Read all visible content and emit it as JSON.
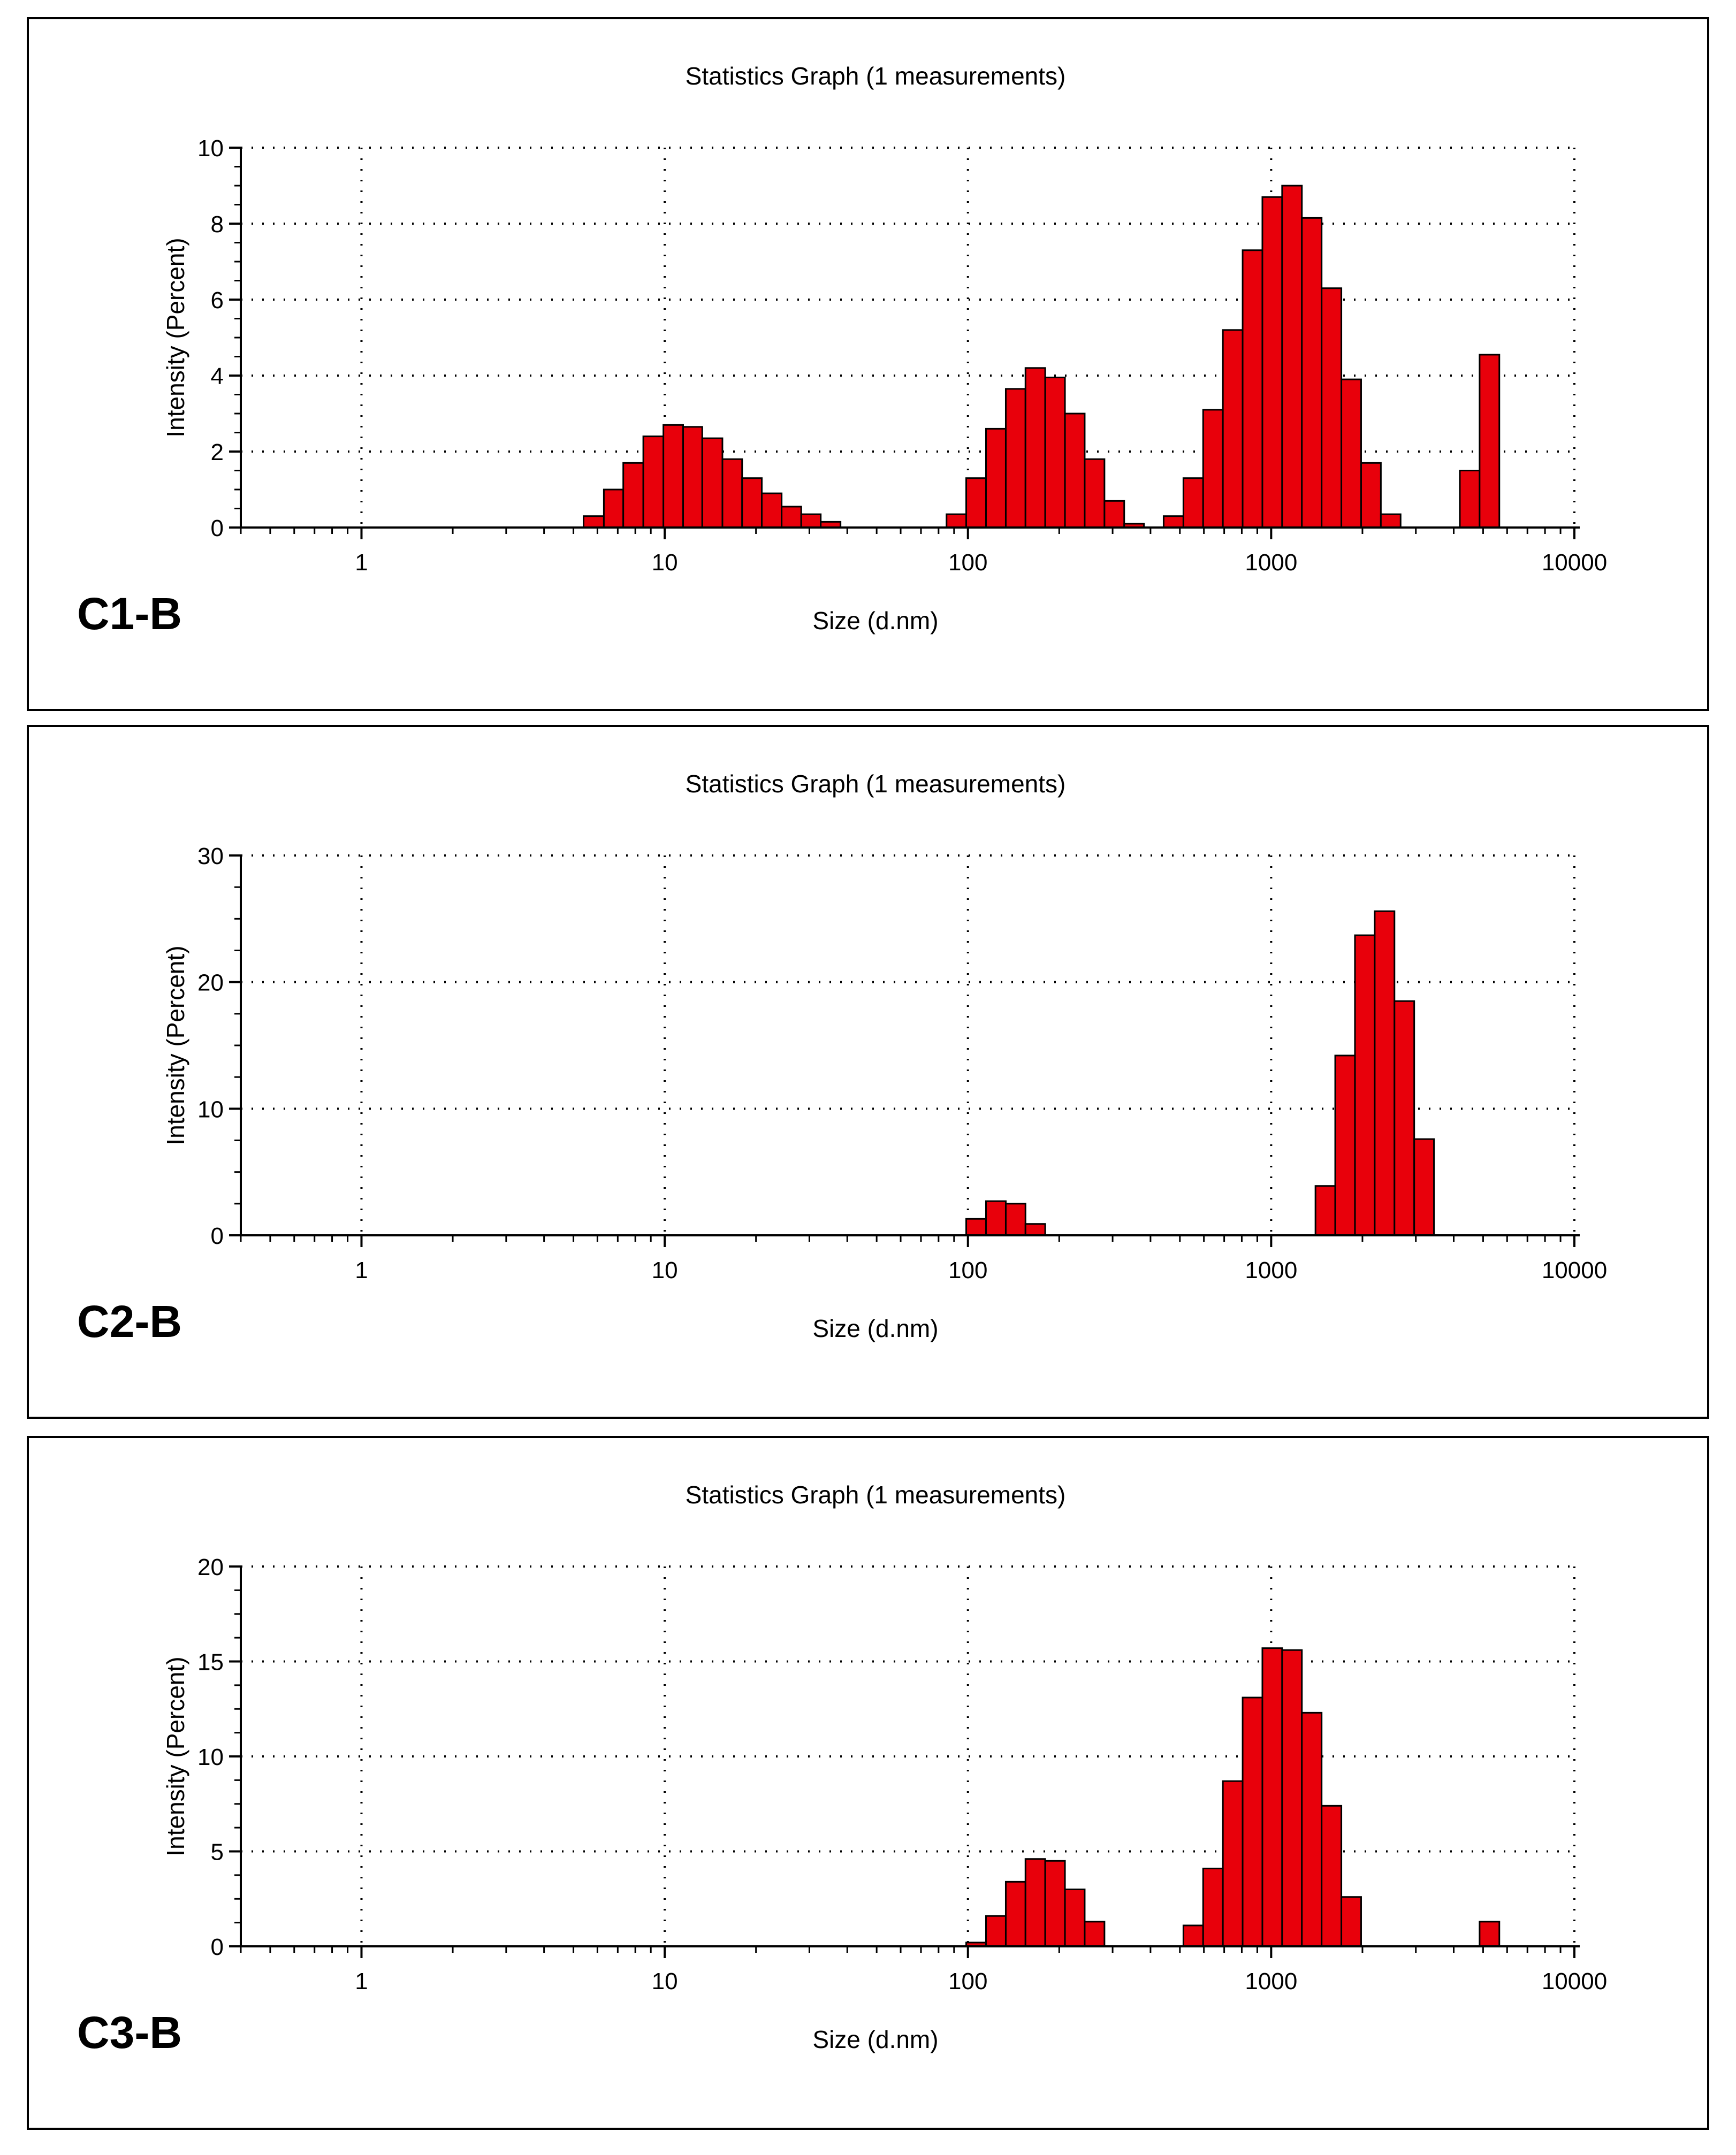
{
  "chart_data": [
    {
      "type": "bar",
      "panel_label": "C1-B",
      "title": "Statistics Graph (1 measurements)",
      "xlabel": "Size (d.nm)",
      "ylabel": "Intensity (Percent)",
      "xscale": "log",
      "xlim": [
        0.4,
        10000
      ],
      "xticks": [
        1,
        10,
        100,
        1000,
        10000
      ],
      "xtick_labels": [
        "1",
        "10",
        "100",
        "1000",
        "10000"
      ],
      "ylim": [
        0,
        10
      ],
      "yticks": [
        0,
        2,
        4,
        6,
        8,
        10
      ],
      "grid": true,
      "bar_color": "#e8000b",
      "bins": [
        {
          "x0": 5.4,
          "x1": 6.3,
          "value": 0.3
        },
        {
          "x0": 6.3,
          "x1": 7.3,
          "value": 1.0
        },
        {
          "x0": 7.3,
          "x1": 8.5,
          "value": 1.7
        },
        {
          "x0": 8.5,
          "x1": 9.9,
          "value": 2.4
        },
        {
          "x0": 9.9,
          "x1": 11.5,
          "value": 2.7
        },
        {
          "x0": 11.5,
          "x1": 13.3,
          "value": 2.65
        },
        {
          "x0": 13.3,
          "x1": 15.5,
          "value": 2.35
        },
        {
          "x0": 15.5,
          "x1": 18.0,
          "value": 1.8
        },
        {
          "x0": 18.0,
          "x1": 20.9,
          "value": 1.3
        },
        {
          "x0": 20.9,
          "x1": 24.3,
          "value": 0.9
        },
        {
          "x0": 24.3,
          "x1": 28.2,
          "value": 0.55
        },
        {
          "x0": 28.2,
          "x1": 32.7,
          "value": 0.35
        },
        {
          "x0": 32.7,
          "x1": 38.0,
          "value": 0.15
        },
        {
          "x0": 85.0,
          "x1": 98.7,
          "value": 0.35
        },
        {
          "x0": 98.7,
          "x1": 114.7,
          "value": 1.3
        },
        {
          "x0": 114.7,
          "x1": 133.3,
          "value": 2.6
        },
        {
          "x0": 133.3,
          "x1": 154.8,
          "value": 3.65
        },
        {
          "x0": 154.8,
          "x1": 179.8,
          "value": 4.2
        },
        {
          "x0": 179.8,
          "x1": 208.9,
          "value": 3.95
        },
        {
          "x0": 208.9,
          "x1": 242.7,
          "value": 3.0
        },
        {
          "x0": 242.7,
          "x1": 282.0,
          "value": 1.8
        },
        {
          "x0": 282.0,
          "x1": 327.6,
          "value": 0.7
        },
        {
          "x0": 327.6,
          "x1": 380.6,
          "value": 0.1
        },
        {
          "x0": 442.0,
          "x1": 513.6,
          "value": 0.3
        },
        {
          "x0": 513.6,
          "x1": 596.6,
          "value": 1.3
        },
        {
          "x0": 596.6,
          "x1": 693.1,
          "value": 3.1
        },
        {
          "x0": 693.1,
          "x1": 805.2,
          "value": 5.2
        },
        {
          "x0": 805.2,
          "x1": 935.5,
          "value": 7.3
        },
        {
          "x0": 935.5,
          "x1": 1086.8,
          "value": 8.7
        },
        {
          "x0": 1086.8,
          "x1": 1262.6,
          "value": 9.0
        },
        {
          "x0": 1262.6,
          "x1": 1466.9,
          "value": 8.15
        },
        {
          "x0": 1466.9,
          "x1": 1704.2,
          "value": 6.3
        },
        {
          "x0": 1704.2,
          "x1": 1979.9,
          "value": 3.9
        },
        {
          "x0": 1979.9,
          "x1": 2300.2,
          "value": 1.7
        },
        {
          "x0": 2300.2,
          "x1": 2672.3,
          "value": 0.35
        },
        {
          "x0": 4190.0,
          "x1": 4868.0,
          "value": 1.5
        },
        {
          "x0": 4868.0,
          "x1": 5656.0,
          "value": 4.55
        }
      ]
    },
    {
      "type": "bar",
      "panel_label": "C2-B",
      "title": "Statistics Graph (1 measurements)",
      "xlabel": "Size (d.nm)",
      "ylabel": "Intensity (Percent)",
      "xscale": "log",
      "xlim": [
        0.4,
        10000
      ],
      "xticks": [
        1,
        10,
        100,
        1000,
        10000
      ],
      "xtick_labels": [
        "1",
        "10",
        "100",
        "1000",
        "10000"
      ],
      "ylim": [
        0,
        30
      ],
      "yticks": [
        0,
        10,
        20,
        30
      ],
      "grid": true,
      "bar_color": "#e8000b",
      "bins": [
        {
          "x0": 98.7,
          "x1": 114.7,
          "value": 1.3
        },
        {
          "x0": 114.7,
          "x1": 133.3,
          "value": 2.7
        },
        {
          "x0": 133.3,
          "x1": 154.8,
          "value": 2.5
        },
        {
          "x0": 154.8,
          "x1": 179.8,
          "value": 0.9
        },
        {
          "x0": 1400.0,
          "x1": 1626.5,
          "value": 3.9
        },
        {
          "x0": 1626.5,
          "x1": 1889.6,
          "value": 14.2
        },
        {
          "x0": 1889.6,
          "x1": 2195.3,
          "value": 23.7
        },
        {
          "x0": 2195.3,
          "x1": 2550.5,
          "value": 25.6
        },
        {
          "x0": 2550.5,
          "x1": 2963.1,
          "value": 18.5
        },
        {
          "x0": 2963.1,
          "x1": 3442.5,
          "value": 7.6
        }
      ]
    },
    {
      "type": "bar",
      "panel_label": "C3-B",
      "title": "Statistics Graph (1 measurements)",
      "xlabel": "Size (d.nm)",
      "ylabel": "Intensity (Percent)",
      "xscale": "log",
      "xlim": [
        0.4,
        10000
      ],
      "xticks": [
        1,
        10,
        100,
        1000,
        10000
      ],
      "xtick_labels": [
        "1",
        "10",
        "100",
        "1000",
        "10000"
      ],
      "ylim": [
        0,
        20
      ],
      "yticks": [
        0,
        5,
        10,
        15,
        20
      ],
      "grid": true,
      "bar_color": "#e8000b",
      "bins": [
        {
          "x0": 98.7,
          "x1": 114.7,
          "value": 0.2
        },
        {
          "x0": 114.7,
          "x1": 133.3,
          "value": 1.6
        },
        {
          "x0": 133.3,
          "x1": 154.8,
          "value": 3.4
        },
        {
          "x0": 154.8,
          "x1": 179.8,
          "value": 4.6
        },
        {
          "x0": 179.8,
          "x1": 208.9,
          "value": 4.5
        },
        {
          "x0": 208.9,
          "x1": 242.7,
          "value": 3.0
        },
        {
          "x0": 242.7,
          "x1": 282.0,
          "value": 1.3
        },
        {
          "x0": 513.6,
          "x1": 596.6,
          "value": 1.1
        },
        {
          "x0": 596.6,
          "x1": 693.1,
          "value": 4.1
        },
        {
          "x0": 693.1,
          "x1": 805.2,
          "value": 8.7
        },
        {
          "x0": 805.2,
          "x1": 935.5,
          "value": 13.1
        },
        {
          "x0": 935.5,
          "x1": 1086.8,
          "value": 15.7
        },
        {
          "x0": 1086.8,
          "x1": 1262.6,
          "value": 15.6
        },
        {
          "x0": 1262.6,
          "x1": 1466.9,
          "value": 12.3
        },
        {
          "x0": 1466.9,
          "x1": 1704.2,
          "value": 7.4
        },
        {
          "x0": 1704.2,
          "x1": 1979.9,
          "value": 2.6
        },
        {
          "x0": 4868.0,
          "x1": 5656.0,
          "value": 1.3
        }
      ]
    }
  ]
}
